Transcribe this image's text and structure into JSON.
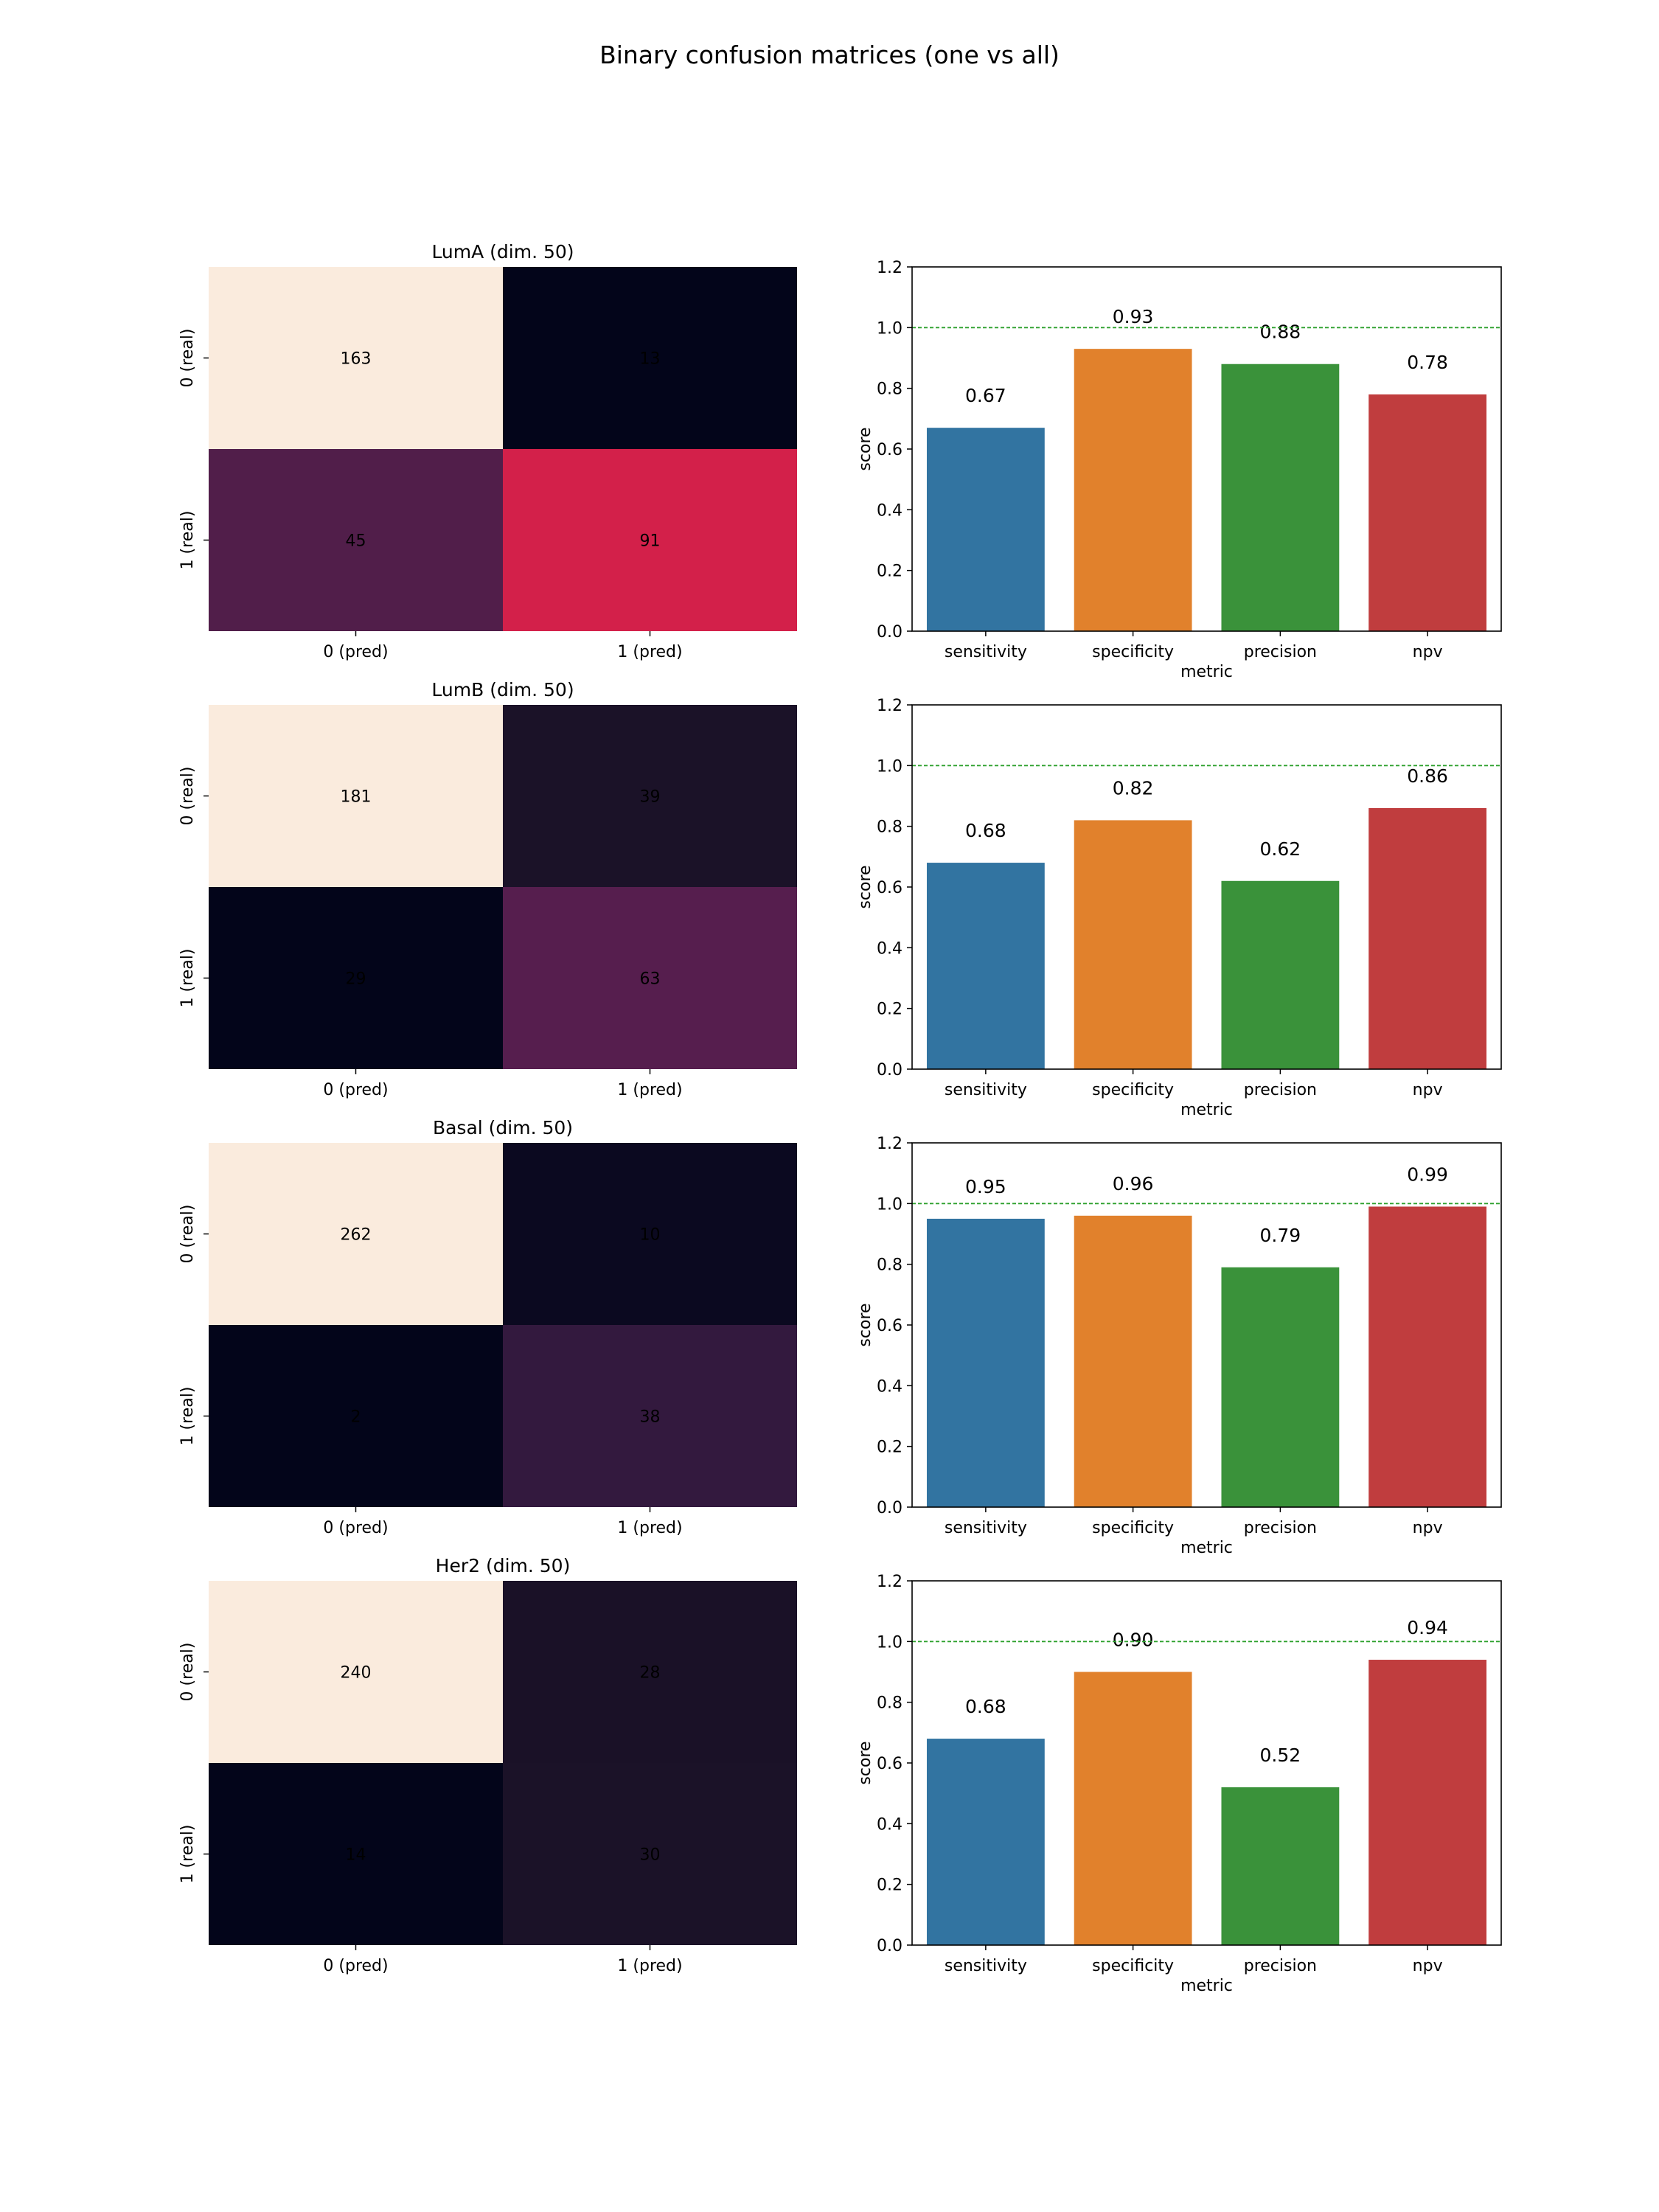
{
  "figure": {
    "title": "Binary confusion matrices (one vs all)"
  },
  "colors": {
    "bars": [
      "#3274a1",
      "#e1812c",
      "#3a923a",
      "#c03d3e"
    ],
    "reference_line": "#2ca02c"
  },
  "chart_data": [
    {
      "type": "heatmap",
      "title": "LumA (dim. 50)",
      "x_categories": [
        "0 (pred)",
        "1 (pred)"
      ],
      "y_categories": [
        "0 (real)",
        "1 (real)"
      ],
      "values": [
        [
          163,
          13
        ],
        [
          45,
          91
        ]
      ],
      "cell_colors": [
        [
          "#faebdd",
          "#03051a"
        ],
        [
          "#511e4a",
          "#d3204a"
        ]
      ]
    },
    {
      "type": "bar",
      "categories": [
        "sensitivity",
        "specificity",
        "precision",
        "npv"
      ],
      "values": [
        0.67,
        0.93,
        0.88,
        0.78
      ],
      "labels": [
        "0.67",
        "0.93",
        "0.88",
        "0.78"
      ],
      "xlabel": "metric",
      "ylabel": "score",
      "ylim": [
        0,
        1.2
      ],
      "yticks": [
        "0.0",
        "0.2",
        "0.4",
        "0.6",
        "0.8",
        "1.0",
        "1.2"
      ],
      "reference_line": 1.0,
      "grid": false
    },
    {
      "type": "heatmap",
      "title": "LumB (dim. 50)",
      "x_categories": [
        "0 (pred)",
        "1 (pred)"
      ],
      "y_categories": [
        "0 (real)",
        "1 (real)"
      ],
      "values": [
        [
          181,
          39
        ],
        [
          29,
          63
        ]
      ],
      "cell_colors": [
        [
          "#faebdd",
          "#1b1228"
        ],
        [
          "#03051a",
          "#561e4e"
        ]
      ]
    },
    {
      "type": "bar",
      "categories": [
        "sensitivity",
        "specificity",
        "precision",
        "npv"
      ],
      "values": [
        0.68,
        0.82,
        0.62,
        0.86
      ],
      "labels": [
        "0.68",
        "0.82",
        "0.62",
        "0.86"
      ],
      "xlabel": "metric",
      "ylabel": "score",
      "ylim": [
        0,
        1.2
      ],
      "yticks": [
        "0.0",
        "0.2",
        "0.4",
        "0.6",
        "0.8",
        "1.0",
        "1.2"
      ],
      "reference_line": 1.0,
      "grid": false
    },
    {
      "type": "heatmap",
      "title": "Basal (dim. 50)",
      "x_categories": [
        "0 (pred)",
        "1 (pred)"
      ],
      "y_categories": [
        "0 (real)",
        "1 (real)"
      ],
      "values": [
        [
          262,
          10
        ],
        [
          2,
          38
        ]
      ],
      "cell_colors": [
        [
          "#faebdd",
          "#0b0920"
        ],
        [
          "#03051a",
          "#33193e"
        ]
      ]
    },
    {
      "type": "bar",
      "categories": [
        "sensitivity",
        "specificity",
        "precision",
        "npv"
      ],
      "values": [
        0.95,
        0.96,
        0.79,
        0.99
      ],
      "labels": [
        "0.95",
        "0.96",
        "0.79",
        "0.99"
      ],
      "xlabel": "metric",
      "ylabel": "score",
      "ylim": [
        0,
        1.2
      ],
      "yticks": [
        "0.0",
        "0.2",
        "0.4",
        "0.6",
        "0.8",
        "1.0",
        "1.2"
      ],
      "reference_line": 1.0,
      "grid": false
    },
    {
      "type": "heatmap",
      "title": "Her2 (dim. 50)",
      "x_categories": [
        "0 (pred)",
        "1 (pred)"
      ],
      "y_categories": [
        "0 (real)",
        "1 (real)"
      ],
      "values": [
        [
          240,
          28
        ],
        [
          14,
          30
        ]
      ],
      "cell_colors": [
        [
          "#faebdd",
          "#1a1127"
        ],
        [
          "#03051a",
          "#1b1228"
        ]
      ]
    },
    {
      "type": "bar",
      "categories": [
        "sensitivity",
        "specificity",
        "precision",
        "npv"
      ],
      "values": [
        0.68,
        0.9,
        0.52,
        0.94
      ],
      "labels": [
        "0.68",
        "0.90",
        "0.52",
        "0.94"
      ],
      "xlabel": "metric",
      "ylabel": "score",
      "ylim": [
        0,
        1.2
      ],
      "yticks": [
        "0.0",
        "0.2",
        "0.4",
        "0.6",
        "0.8",
        "1.0",
        "1.2"
      ],
      "reference_line": 1.0,
      "grid": false
    }
  ]
}
